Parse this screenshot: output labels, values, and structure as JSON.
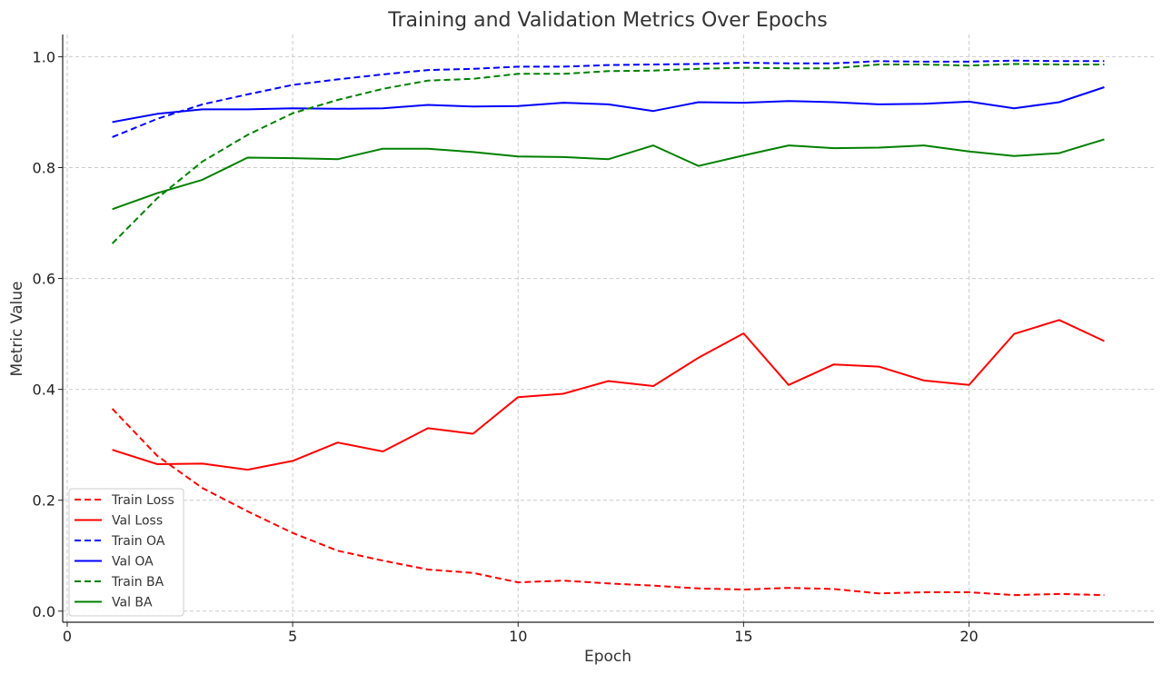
{
  "chart_data": {
    "type": "line",
    "title": "Training and Validation Metrics Over Epochs",
    "xlabel": "Epoch",
    "ylabel": "Metric Value",
    "xlim": [
      -0.1,
      24.1
    ],
    "ylim": [
      -0.02,
      1.04
    ],
    "xticks": [
      0,
      5,
      10,
      15,
      20
    ],
    "xtick_labels": [
      "0",
      "5",
      "10",
      "15",
      "20"
    ],
    "yticks": [
      0.0,
      0.2,
      0.4,
      0.6,
      0.8,
      1.0
    ],
    "ytick_labels": [
      "0.0",
      "0.2",
      "0.4",
      "0.6",
      "0.8",
      "1.0"
    ],
    "grid": true,
    "legend_position": "lower-left",
    "x": [
      1,
      2,
      3,
      4,
      5,
      6,
      7,
      8,
      9,
      10,
      11,
      12,
      13,
      14,
      15,
      16,
      17,
      18,
      19,
      20,
      21,
      22,
      23
    ],
    "series": [
      {
        "name": "Train Loss",
        "color": "#ff0000",
        "style": "dashed",
        "values": [
          0.365,
          0.28,
          0.222,
          0.18,
          0.141,
          0.109,
          0.091,
          0.075,
          0.069,
          0.052,
          0.055,
          0.05,
          0.046,
          0.041,
          0.039,
          0.042,
          0.04,
          0.032,
          0.034,
          0.034,
          0.029,
          0.031,
          0.029
        ]
      },
      {
        "name": "Val Loss",
        "color": "#ff0000",
        "style": "solid",
        "values": [
          0.291,
          0.265,
          0.266,
          0.255,
          0.271,
          0.304,
          0.288,
          0.33,
          0.32,
          0.386,
          0.392,
          0.415,
          0.406,
          0.457,
          0.501,
          0.408,
          0.445,
          0.441,
          0.416,
          0.408,
          0.5,
          0.525,
          0.487
        ]
      },
      {
        "name": "Train OA",
        "color": "#0000ff",
        "style": "dashed",
        "values": [
          0.855,
          0.888,
          0.914,
          0.932,
          0.949,
          0.959,
          0.968,
          0.976,
          0.978,
          0.982,
          0.982,
          0.985,
          0.986,
          0.987,
          0.989,
          0.988,
          0.988,
          0.992,
          0.991,
          0.991,
          0.993,
          0.992,
          0.992
        ]
      },
      {
        "name": "Val OA",
        "color": "#0000ff",
        "style": "solid",
        "values": [
          0.882,
          0.897,
          0.905,
          0.905,
          0.907,
          0.906,
          0.907,
          0.913,
          0.91,
          0.911,
          0.917,
          0.914,
          0.902,
          0.918,
          0.917,
          0.92,
          0.918,
          0.914,
          0.915,
          0.919,
          0.907,
          0.918,
          0.945
        ]
      },
      {
        "name": "Train BA",
        "color": "#008000",
        "style": "dashed",
        "values": [
          0.663,
          0.745,
          0.811,
          0.859,
          0.898,
          0.922,
          0.942,
          0.957,
          0.96,
          0.969,
          0.969,
          0.974,
          0.975,
          0.978,
          0.98,
          0.979,
          0.979,
          0.986,
          0.986,
          0.984,
          0.987,
          0.986,
          0.986
        ]
      },
      {
        "name": "Val BA",
        "color": "#008000",
        "style": "solid",
        "values": [
          0.725,
          0.754,
          0.778,
          0.818,
          0.817,
          0.815,
          0.834,
          0.834,
          0.828,
          0.82,
          0.819,
          0.815,
          0.84,
          0.803,
          0.822,
          0.84,
          0.835,
          0.836,
          0.84,
          0.829,
          0.821,
          0.826,
          0.851
        ]
      }
    ]
  }
}
